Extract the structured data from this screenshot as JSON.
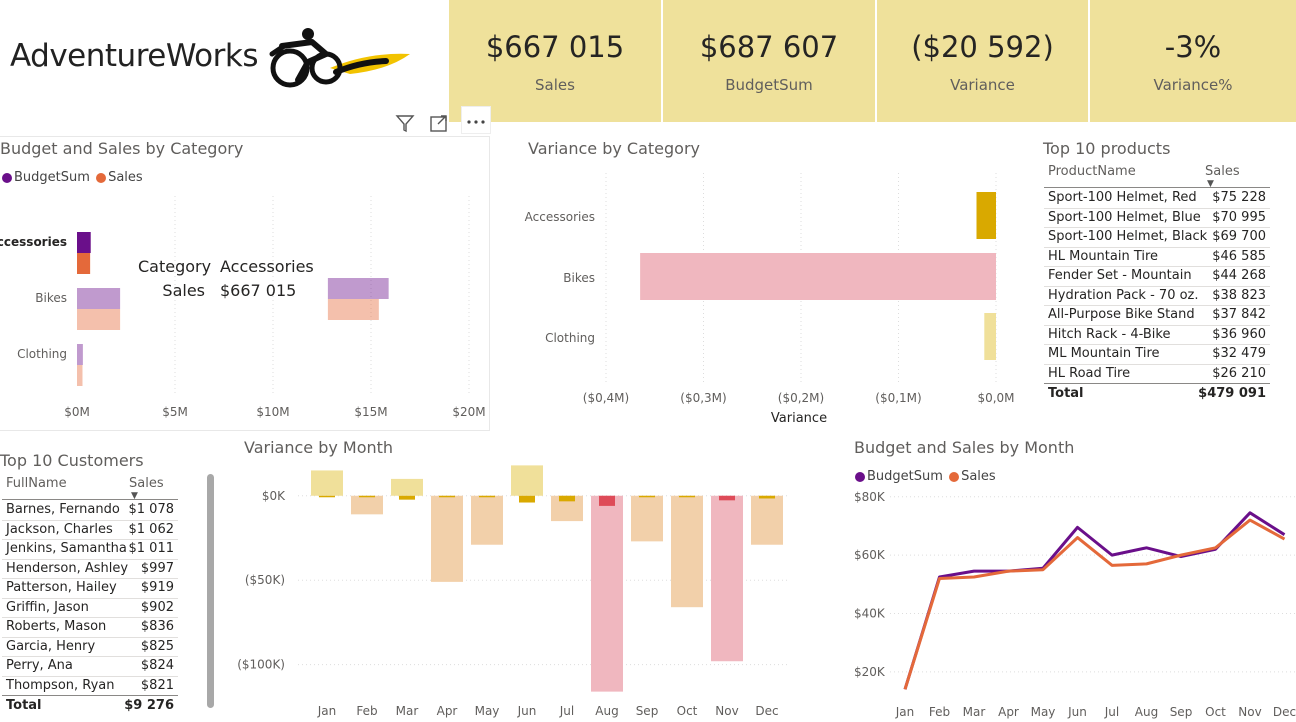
{
  "brand": {
    "name": "AdventureWorks"
  },
  "kpis": [
    {
      "value": "$667 015",
      "label": "Sales"
    },
    {
      "value": "$687 607",
      "label": "BudgetSum"
    },
    {
      "value": "($20 592)",
      "label": "Variance"
    },
    {
      "value": "-3%",
      "label": "Variance%"
    }
  ],
  "colors": {
    "budget": "#6a0f8a",
    "sales": "#e4693a",
    "kpi_bg": "#efe19b",
    "var_pos": "#f0e09a",
    "var_neg_peach": "#f2d0aa",
    "var_neg_pink": "#f0b7bf",
    "var_small": "#d9a900",
    "var_small_red": "#de4b58"
  },
  "toolbar": {
    "filter_icon": "filter-icon",
    "focus_icon": "focus-mode-icon",
    "more_icon": "more-options-icon"
  },
  "budget_sales_category": {
    "title": "Budget and Sales by Category",
    "legend": [
      "BudgetSum",
      "Sales"
    ],
    "tooltip": {
      "k1": "Category",
      "v1": "Accessories",
      "k2": "Sales",
      "v2": "$667 015"
    }
  },
  "variance_category": {
    "title": "Variance by Category",
    "xlabel": "Variance"
  },
  "top_products": {
    "title": "Top 10 products",
    "col1": "ProductName",
    "col2": "Sales",
    "rows": [
      {
        "name": "Sport-100 Helmet, Red",
        "sales": "$75 228"
      },
      {
        "name": "Sport-100 Helmet, Blue",
        "sales": "$70 995"
      },
      {
        "name": "Sport-100 Helmet, Black",
        "sales": "$69 700"
      },
      {
        "name": "HL Mountain Tire",
        "sales": "$46 585"
      },
      {
        "name": "Fender Set - Mountain",
        "sales": "$44 268"
      },
      {
        "name": "Hydration Pack - 70 oz.",
        "sales": "$38 823"
      },
      {
        "name": "All-Purpose Bike Stand",
        "sales": "$37 842"
      },
      {
        "name": "Hitch Rack - 4-Bike",
        "sales": "$36 960"
      },
      {
        "name": "ML Mountain Tire",
        "sales": "$32 479"
      },
      {
        "name": "HL Road Tire",
        "sales": "$26 210"
      }
    ],
    "total_label": "Total",
    "total_value": "$479 091"
  },
  "top_customers": {
    "title": "Top 10 Customers",
    "col1": "FullName",
    "col2": "Sales",
    "rows": [
      {
        "name": "Barnes, Fernando",
        "sales": "$1 078"
      },
      {
        "name": "Jackson, Charles",
        "sales": "$1 062"
      },
      {
        "name": "Jenkins, Samantha",
        "sales": "$1 011"
      },
      {
        "name": "Henderson, Ashley",
        "sales": "$997"
      },
      {
        "name": "Patterson, Hailey",
        "sales": "$919"
      },
      {
        "name": "Griffin, Jason",
        "sales": "$902"
      },
      {
        "name": "Roberts, Mason",
        "sales": "$836"
      },
      {
        "name": "Garcia, Henry",
        "sales": "$825"
      },
      {
        "name": "Perry, Ana",
        "sales": "$824"
      },
      {
        "name": "Thompson, Ryan",
        "sales": "$821"
      }
    ],
    "total_label": "Total",
    "total_value": "$9 276"
  },
  "variance_month": {
    "title": "Variance by Month"
  },
  "budget_sales_month": {
    "title": "Budget and Sales by Month",
    "legend": [
      "BudgetSum",
      "Sales"
    ]
  },
  "chart_data": [
    {
      "type": "bar",
      "orientation": "horizontal",
      "title": "Budget and Sales by Category",
      "categories": [
        "Accessories",
        "Bikes",
        "Clothing"
      ],
      "highlighted_category": "Accessories",
      "series": [
        {
          "name": "BudgetSum",
          "values": [
            0.7,
            2.2,
            0.3
          ]
        },
        {
          "name": "Sales",
          "values": [
            0.67,
            2.2,
            0.28
          ]
        }
      ],
      "second_group": {
        "values": [
          [
            15.9,
            15.4
          ]
        ]
      },
      "xticks": [
        "$0M",
        "$5M",
        "$10M",
        "$15M",
        "$20M"
      ],
      "xlim": [
        0,
        20
      ],
      "grid": true,
      "legend": "top-left"
    },
    {
      "type": "bar",
      "orientation": "horizontal",
      "title": "Variance by Category",
      "xlabel": "Variance",
      "categories": [
        "Accessories",
        "Bikes",
        "Clothing"
      ],
      "values": [
        -0.02,
        -0.365,
        -0.012
      ],
      "xticks": [
        "($0,4M)",
        "($0,3M)",
        "($0,2M)",
        "($0,1M)",
        "$0,0M"
      ],
      "xlim": [
        -0.4,
        0
      ],
      "grid": true
    },
    {
      "type": "bar",
      "title": "Variance by Month",
      "categories": [
        "Jan",
        "Feb",
        "Mar",
        "Apr",
        "May",
        "Jun",
        "Jul",
        "Aug",
        "Sep",
        "Oct",
        "Nov",
        "Dec"
      ],
      "series": [
        {
          "name": "total",
          "values": [
            15,
            -11,
            10,
            -51,
            -29,
            18,
            -15,
            -116,
            -27,
            -66,
            -98,
            -29
          ]
        },
        {
          "name": "highlighted",
          "values": [
            -0.8,
            -0.6,
            -2.3,
            -0.4,
            -0.6,
            -4,
            -3.3,
            -6,
            -0.8,
            -0.6,
            -2.7,
            -1.6
          ]
        }
      ],
      "yticks": [
        "$0K",
        "($50K)",
        "($100K)"
      ],
      "ylim": [
        -118,
        20
      ],
      "grid": true
    },
    {
      "type": "line",
      "title": "Budget and Sales by Month",
      "x": [
        "Jan",
        "Feb",
        "Mar",
        "Apr",
        "May",
        "Jun",
        "Jul",
        "Aug",
        "Sep",
        "Oct",
        "Nov",
        "Dec"
      ],
      "series": [
        {
          "name": "BudgetSum",
          "values": [
            14,
            52.5,
            54.5,
            54.5,
            55.5,
            69.5,
            60,
            62.5,
            59.5,
            62,
            74.5,
            67
          ]
        },
        {
          "name": "Sales",
          "values": [
            14,
            52,
            52.5,
            54.5,
            55,
            66,
            56.5,
            57,
            60,
            62.5,
            72,
            65.5
          ]
        }
      ],
      "yticks": [
        "$20K",
        "$40K",
        "$60K",
        "$80K"
      ],
      "ylim": [
        10,
        83
      ],
      "grid": true,
      "legend": "top-left"
    }
  ]
}
